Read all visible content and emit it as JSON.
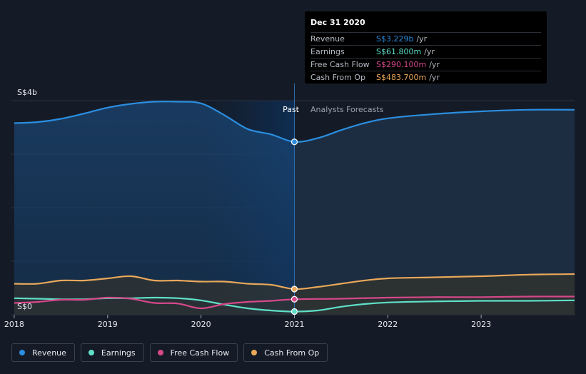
{
  "chart_data": {
    "type": "line",
    "currency_unit": "S$",
    "y_axis_labels": [
      "S$4b",
      "S$0"
    ],
    "ylim": [
      0,
      4
    ],
    "x_ticks": [
      "2018",
      "2019",
      "2020",
      "2021",
      "2022",
      "2023"
    ],
    "region_labels": {
      "past": "Past",
      "forecast": "Analysts Forecasts"
    },
    "series": [
      {
        "name": "Revenue",
        "key": "revenue",
        "color": "#2b8ee0",
        "points": [
          [
            2018.0,
            3.58
          ],
          [
            2018.25,
            3.6
          ],
          [
            2018.5,
            3.66
          ],
          [
            2018.75,
            3.76
          ],
          [
            2019.0,
            3.87
          ],
          [
            2019.25,
            3.94
          ],
          [
            2019.5,
            3.98
          ],
          [
            2019.75,
            3.98
          ],
          [
            2020.0,
            3.95
          ],
          [
            2020.25,
            3.73
          ],
          [
            2020.5,
            3.47
          ],
          [
            2020.75,
            3.37
          ],
          [
            2021.0,
            3.23
          ],
          [
            2021.25,
            3.3
          ],
          [
            2021.5,
            3.45
          ],
          [
            2021.75,
            3.58
          ],
          [
            2022.0,
            3.67
          ],
          [
            2022.5,
            3.75
          ],
          [
            2023.0,
            3.8
          ],
          [
            2023.5,
            3.83
          ],
          [
            2024.0,
            3.83
          ]
        ]
      },
      {
        "name": "Earnings",
        "key": "earnings",
        "color": "#5fe0c8",
        "points": [
          [
            2018.0,
            0.31
          ],
          [
            2018.25,
            0.3
          ],
          [
            2018.5,
            0.29
          ],
          [
            2018.75,
            0.29
          ],
          [
            2019.0,
            0.31
          ],
          [
            2019.25,
            0.31
          ],
          [
            2019.5,
            0.32
          ],
          [
            2019.75,
            0.31
          ],
          [
            2020.0,
            0.27
          ],
          [
            2020.25,
            0.19
          ],
          [
            2020.5,
            0.12
          ],
          [
            2020.75,
            0.08
          ],
          [
            2021.0,
            0.06
          ],
          [
            2021.25,
            0.08
          ],
          [
            2021.5,
            0.15
          ],
          [
            2021.75,
            0.2
          ],
          [
            2022.0,
            0.23
          ],
          [
            2022.5,
            0.25
          ],
          [
            2023.0,
            0.26
          ],
          [
            2023.5,
            0.26
          ],
          [
            2024.0,
            0.27
          ]
        ]
      },
      {
        "name": "Free Cash Flow",
        "key": "fcf",
        "color": "#d6488a",
        "points": [
          [
            2018.0,
            0.22
          ],
          [
            2018.25,
            0.24
          ],
          [
            2018.5,
            0.28
          ],
          [
            2018.75,
            0.28
          ],
          [
            2019.0,
            0.32
          ],
          [
            2019.25,
            0.3
          ],
          [
            2019.5,
            0.22
          ],
          [
            2019.75,
            0.21
          ],
          [
            2020.0,
            0.12
          ],
          [
            2020.25,
            0.2
          ],
          [
            2020.5,
            0.24
          ],
          [
            2020.75,
            0.26
          ],
          [
            2021.0,
            0.29
          ],
          [
            2021.5,
            0.3
          ],
          [
            2022.0,
            0.32
          ],
          [
            2022.5,
            0.33
          ],
          [
            2023.0,
            0.33
          ],
          [
            2023.5,
            0.34
          ],
          [
            2024.0,
            0.34
          ]
        ]
      },
      {
        "name": "Cash From Op",
        "key": "cfo",
        "color": "#e9a85a",
        "points": [
          [
            2018.0,
            0.58
          ],
          [
            2018.25,
            0.58
          ],
          [
            2018.5,
            0.64
          ],
          [
            2018.75,
            0.64
          ],
          [
            2019.0,
            0.68
          ],
          [
            2019.25,
            0.72
          ],
          [
            2019.5,
            0.64
          ],
          [
            2019.75,
            0.64
          ],
          [
            2020.0,
            0.62
          ],
          [
            2020.25,
            0.62
          ],
          [
            2020.5,
            0.58
          ],
          [
            2020.75,
            0.56
          ],
          [
            2021.0,
            0.48
          ],
          [
            2021.25,
            0.52
          ],
          [
            2021.5,
            0.58
          ],
          [
            2021.75,
            0.64
          ],
          [
            2022.0,
            0.68
          ],
          [
            2022.5,
            0.7
          ],
          [
            2023.0,
            0.72
          ],
          [
            2023.5,
            0.75
          ],
          [
            2024.0,
            0.76
          ]
        ]
      }
    ],
    "highlight_x": 2021.0
  },
  "tooltip": {
    "date": "Dec 31 2020",
    "rows": [
      {
        "name": "Revenue",
        "value": "S$3.229b",
        "unit": "/yr",
        "color": "#2b8ee0"
      },
      {
        "name": "Earnings",
        "value": "S$61.800m",
        "unit": "/yr",
        "color": "#5fe0c8"
      },
      {
        "name": "Free Cash Flow",
        "value": "S$290.100m",
        "unit": "/yr",
        "color": "#d6488a"
      },
      {
        "name": "Cash From Op",
        "value": "S$483.700m",
        "unit": "/yr",
        "color": "#e9a85a"
      }
    ]
  },
  "legend": [
    {
      "label": "Revenue",
      "color": "#2b8ee0"
    },
    {
      "label": "Earnings",
      "color": "#5fe0c8"
    },
    {
      "label": "Free Cash Flow",
      "color": "#d6488a"
    },
    {
      "label": "Cash From Op",
      "color": "#e9a85a"
    }
  ]
}
